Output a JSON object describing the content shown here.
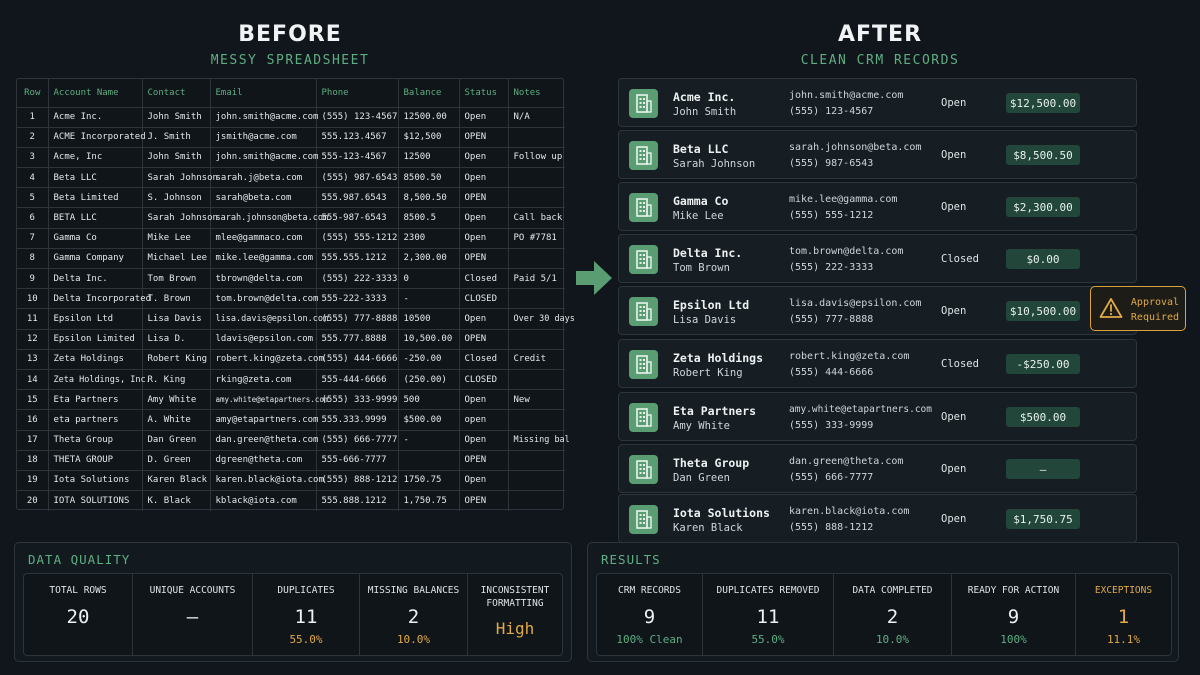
{
  "before": {
    "title": "BEFORE",
    "subtitle": "MESSY SPREADSHEET"
  },
  "after": {
    "title": "AFTER",
    "subtitle": "CLEAN CRM RECORDS"
  },
  "sheet": {
    "headers": [
      "Row",
      "Account Name",
      "Contact",
      "Email",
      "Phone",
      "Balance",
      "Status",
      "Notes"
    ],
    "rows": [
      [
        "1",
        "Acme Inc.",
        "John Smith",
        "john.smith@acme.com",
        "(555) 123-4567",
        "12500.00",
        "Open",
        "N/A"
      ],
      [
        "2",
        "ACME Incorporated",
        "J. Smith",
        "jsmith@acme.com",
        "555.123.4567",
        "$12,500",
        "OPEN",
        ""
      ],
      [
        "3",
        "Acme, Inc",
        "John  Smith",
        "john.smith@acme.com",
        "555-123-4567",
        "12500",
        "Open",
        "Follow up"
      ],
      [
        "4",
        "Beta LLC",
        "Sarah Johnson",
        "sarah.j@beta.com",
        "(555) 987-6543",
        "8500.50",
        "Open",
        ""
      ],
      [
        "5",
        "Beta Limited",
        "S. Johnson",
        "sarah@beta.com",
        "555.987.6543",
        "8,500.50",
        "OPEN",
        ""
      ],
      [
        "6",
        "BETA LLC",
        "Sarah Johnson",
        "sarah.johnson@beta.com",
        "555-987-6543",
        "8500.5",
        "Open",
        "Call back"
      ],
      [
        "7",
        "Gamma Co",
        "Mike Lee",
        "mlee@gammaco.com",
        "(555) 555-1212",
        "2300",
        "Open",
        "PO #7781"
      ],
      [
        "8",
        "Gamma Company",
        "Michael Lee",
        "mike.lee@gamma.com",
        "555.555.1212",
        "2,300.00",
        "OPEN",
        ""
      ],
      [
        "9",
        "Delta Inc.",
        "Tom Brown",
        "tbrown@delta.com",
        "(555) 222-3333",
        "0",
        "Closed",
        "Paid 5/1"
      ],
      [
        "10",
        "Delta Incorporated",
        "T. Brown",
        "tom.brown@delta.com",
        "555-222-3333",
        "-",
        "CLOSED",
        ""
      ],
      [
        "11",
        "Epsilon Ltd",
        "Lisa Davis",
        "lisa.davis@epsilon.com",
        "(555) 777-8888",
        "10500",
        "Open",
        "Over 30 days"
      ],
      [
        "12",
        "Epsilon Limited",
        "Lisa D.",
        "ldavis@epsilon.com",
        "555.777.8888",
        "10,500.00",
        "OPEN",
        ""
      ],
      [
        "13",
        "Zeta Holdings",
        "Robert King",
        "robert.king@zeta.com",
        "(555) 444-6666",
        "-250.00",
        "Closed",
        "Credit"
      ],
      [
        "14",
        "Zeta Holdings, Inc.",
        "R. King",
        "rking@zeta.com",
        "555-444-6666",
        "(250.00)",
        "CLOSED",
        ""
      ],
      [
        "15",
        "Eta Partners",
        "Amy White",
        "amy.white@etapartners.com",
        "(555) 333-9999",
        "500",
        "Open",
        "New"
      ],
      [
        "16",
        " eta partners",
        "A. White",
        "amy@etapartners.com",
        "555.333.9999",
        "$500.00",
        "open",
        ""
      ],
      [
        "17",
        "Theta Group",
        "Dan Green",
        "dan.green@theta.com",
        "(555) 666-7777",
        "-",
        "Open",
        "Missing bal"
      ],
      [
        "18",
        "THETA GROUP",
        "D. Green",
        "dgreen@theta.com",
        "555-666-7777",
        "",
        "OPEN",
        ""
      ],
      [
        "19",
        "Iota Solutions",
        "Karen Black",
        "karen.black@iota.com",
        "(555) 888-1212",
        "1750.75",
        "Open",
        ""
      ],
      [
        "20",
        "IOTA SOLUTIONS",
        "K. Black",
        "kblack@iota.com",
        "555.888.1212",
        "1,750.75",
        "OPEN",
        ""
      ]
    ]
  },
  "records": [
    {
      "name": "Acme Inc.",
      "contact": "John Smith",
      "email": "john.smith@acme.com",
      "phone": "(555) 123-4567",
      "status": "Open",
      "balance": "$12,500.00"
    },
    {
      "name": "Beta LLC",
      "contact": "Sarah Johnson",
      "email": "sarah.johnson@beta.com",
      "phone": "(555) 987-6543",
      "status": "Open",
      "balance": "$8,500.50"
    },
    {
      "name": "Gamma Co",
      "contact": "Mike Lee",
      "email": "mike.lee@gamma.com",
      "phone": "(555) 555-1212",
      "status": "Open",
      "balance": "$2,300.00"
    },
    {
      "name": "Delta Inc.",
      "contact": "Tom Brown",
      "email": "tom.brown@delta.com",
      "phone": "(555) 222-3333",
      "status": "Closed",
      "balance": "$0.00"
    },
    {
      "name": "Epsilon Ltd",
      "contact": "Lisa Davis",
      "email": "lisa.davis@epsilon.com",
      "phone": "(555) 777-8888",
      "status": "Open",
      "balance": "$10,500.00"
    },
    {
      "name": "Zeta Holdings",
      "contact": "Robert King",
      "email": "robert.king@zeta.com",
      "phone": "(555) 444-6666",
      "status": "Closed",
      "balance": "-$250.00"
    },
    {
      "name": "Eta Partners",
      "contact": "Amy White",
      "email": "amy.white@etapartners.com",
      "phone": "(555) 333-9999",
      "status": "Open",
      "balance": "$500.00"
    },
    {
      "name": "Theta Group",
      "contact": "Dan Green",
      "email": "dan.green@theta.com",
      "phone": "(555) 666-7777",
      "status": "Open",
      "balance": "—"
    },
    {
      "name": "Iota Solutions",
      "contact": "Karen Black",
      "email": "karen.black@iota.com",
      "phone": "(555) 888-1212",
      "status": "Open",
      "balance": "$1,750.75"
    }
  ],
  "approval": {
    "line1": "Approval",
    "line2": "Required",
    "icon": "warning-icon"
  },
  "data_quality": {
    "title": "DATA QUALITY",
    "stats": [
      {
        "label": "TOTAL ROWS",
        "value": "20",
        "sub": ""
      },
      {
        "label": "UNIQUE ACCOUNTS",
        "value": "—",
        "sub": ""
      },
      {
        "label": "DUPLICATES",
        "value": "11",
        "sub": "55.0%"
      },
      {
        "label": "MISSING BALANCES",
        "value": "2",
        "sub": "10.0%"
      },
      {
        "label": "INCONSISTENT FORMATTING",
        "value": "High",
        "sub": ""
      }
    ]
  },
  "results": {
    "title": "RESULTS",
    "stats": [
      {
        "label": "CRM RECORDS",
        "value": "9",
        "sub": "100% Clean"
      },
      {
        "label": "DUPLICATES REMOVED",
        "value": "11",
        "sub": "55.0%"
      },
      {
        "label": "DATA COMPLETED",
        "value": "2",
        "sub": "10.0%"
      },
      {
        "label": "READY FOR ACTION",
        "value": "9",
        "sub": "100%"
      },
      {
        "label": "EXCEPTIONS",
        "value": "1",
        "sub": "11.1%"
      }
    ]
  },
  "colors": {
    "accent": "#5fae82",
    "warning": "#e0a94a",
    "balance_bg": "#22463a",
    "icon_bg": "#5b9d73"
  }
}
